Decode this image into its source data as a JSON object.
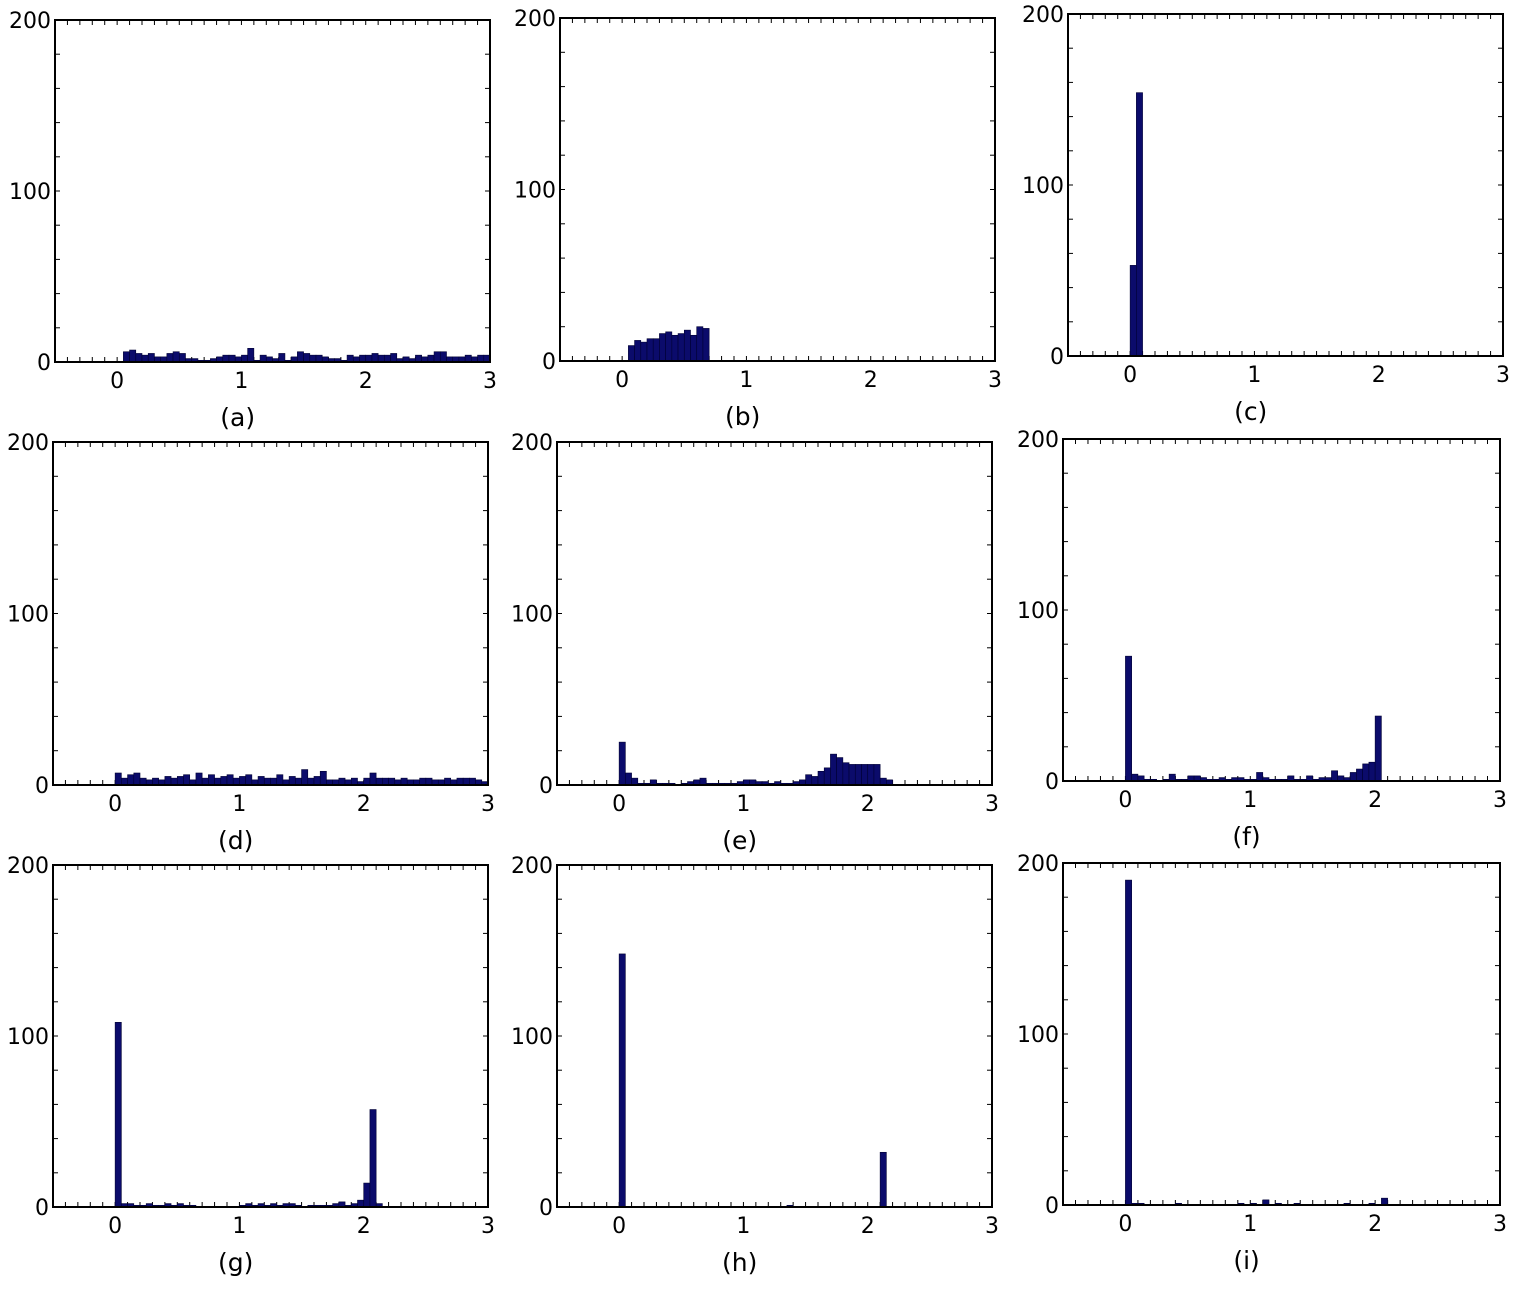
{
  "figure": {
    "bar_color": "#0b0b6b",
    "bar_edge_color": "#000033",
    "frame_color": "#000000"
  },
  "chart_data": [
    {
      "type": "bar",
      "caption": "(a)",
      "xlim": [
        -0.5,
        3
      ],
      "ylim": [
        0,
        200
      ],
      "xticks": [
        "0",
        "1",
        "2",
        "3"
      ],
      "yticks": [
        "0",
        "100",
        "200"
      ],
      "bin_width": 0.05,
      "x": [
        0.05,
        0.1,
        0.15,
        0.2,
        0.25,
        0.3,
        0.35,
        0.4,
        0.45,
        0.5,
        0.55,
        0.6,
        0.65,
        0.7,
        0.75,
        0.8,
        0.85,
        0.9,
        0.95,
        1.0,
        1.05,
        1.1,
        1.15,
        1.2,
        1.25,
        1.3,
        1.35,
        1.4,
        1.45,
        1.5,
        1.55,
        1.6,
        1.65,
        1.7,
        1.75,
        1.8,
        1.85,
        1.9,
        1.95,
        2.0,
        2.05,
        2.1,
        2.15,
        2.2,
        2.25,
        2.3,
        2.35,
        2.4,
        2.45,
        2.5,
        2.55,
        2.6,
        2.65,
        2.7,
        2.75,
        2.8,
        2.85,
        2.9,
        2.95
      ],
      "values": [
        6,
        7,
        5,
        4,
        5,
        3,
        3,
        5,
        6,
        5,
        2,
        2,
        1,
        1,
        2,
        3,
        4,
        4,
        3,
        4,
        8,
        1,
        4,
        3,
        2,
        5,
        1,
        3,
        6,
        5,
        4,
        4,
        3,
        2,
        2,
        1,
        4,
        3,
        4,
        4,
        5,
        4,
        4,
        5,
        2,
        3,
        2,
        4,
        3,
        4,
        6,
        6,
        3,
        3,
        3,
        4,
        3,
        4,
        4
      ]
    },
    {
      "type": "bar",
      "caption": "(b)",
      "xlim": [
        -0.5,
        3
      ],
      "ylim": [
        0,
        200
      ],
      "xticks": [
        "0",
        "1",
        "2",
        "3"
      ],
      "yticks": [
        "0",
        "100",
        "200"
      ],
      "bin_width": 0.05,
      "x": [
        0.05,
        0.1,
        0.15,
        0.2,
        0.25,
        0.3,
        0.35,
        0.4,
        0.45,
        0.5,
        0.55,
        0.6,
        0.65
      ],
      "values": [
        9,
        12,
        11,
        13,
        13,
        16,
        17,
        15,
        16,
        18,
        15,
        20,
        19
      ]
    },
    {
      "type": "bar",
      "caption": "(c)",
      "xlim": [
        -0.5,
        3
      ],
      "ylim": [
        0,
        200
      ],
      "xticks": [
        "0",
        "1",
        "2",
        "3"
      ],
      "yticks": [
        "0",
        "100",
        "200"
      ],
      "bin_width": 0.05,
      "x": [
        0.0,
        0.05
      ],
      "values": [
        53,
        154
      ]
    },
    {
      "type": "bar",
      "caption": "(d)",
      "xlim": [
        -0.5,
        3
      ],
      "ylim": [
        0,
        200
      ],
      "xticks": [
        "0",
        "1",
        "2",
        "3"
      ],
      "yticks": [
        "0",
        "100",
        "200"
      ],
      "bin_width": 0.05,
      "x": [
        0.0,
        0.05,
        0.1,
        0.15,
        0.2,
        0.25,
        0.3,
        0.35,
        0.4,
        0.45,
        0.5,
        0.55,
        0.6,
        0.65,
        0.7,
        0.75,
        0.8,
        0.85,
        0.9,
        0.95,
        1.0,
        1.05,
        1.1,
        1.15,
        1.2,
        1.25,
        1.3,
        1.35,
        1.4,
        1.45,
        1.5,
        1.55,
        1.6,
        1.65,
        1.7,
        1.75,
        1.8,
        1.85,
        1.9,
        1.95,
        2.0,
        2.05,
        2.1,
        2.15,
        2.2,
        2.25,
        2.3,
        2.35,
        2.4,
        2.45,
        2.5,
        2.55,
        2.6,
        2.65,
        2.7,
        2.75,
        2.8,
        2.85,
        2.9,
        2.95
      ],
      "values": [
        7,
        4,
        6,
        7,
        4,
        3,
        4,
        3,
        5,
        4,
        5,
        6,
        3,
        7,
        4,
        6,
        4,
        5,
        6,
        4,
        5,
        6,
        3,
        5,
        4,
        4,
        6,
        3,
        5,
        4,
        9,
        4,
        5,
        8,
        3,
        3,
        4,
        3,
        4,
        2,
        4,
        7,
        4,
        4,
        4,
        3,
        4,
        3,
        3,
        4,
        4,
        3,
        3,
        4,
        3,
        4,
        4,
        4,
        3,
        2
      ]
    },
    {
      "type": "bar",
      "caption": "(e)",
      "xlim": [
        -0.5,
        3
      ],
      "ylim": [
        0,
        200
      ],
      "xticks": [
        "0",
        "1",
        "2",
        "3"
      ],
      "yticks": [
        "0",
        "100",
        "200"
      ],
      "bin_width": 0.05,
      "x": [
        0.0,
        0.05,
        0.1,
        0.15,
        0.2,
        0.25,
        0.3,
        0.35,
        0.4,
        0.45,
        0.5,
        0.55,
        0.6,
        0.65,
        0.7,
        0.75,
        0.8,
        0.85,
        0.9,
        0.95,
        1.0,
        1.05,
        1.1,
        1.15,
        1.2,
        1.25,
        1.3,
        1.35,
        1.4,
        1.45,
        1.5,
        1.55,
        1.6,
        1.65,
        1.7,
        1.75,
        1.8,
        1.85,
        1.9,
        1.95,
        2.0,
        2.05,
        2.1,
        2.15
      ],
      "values": [
        25,
        7,
        4,
        1,
        1,
        3,
        1,
        1,
        1,
        0,
        1,
        2,
        3,
        4,
        1,
        1,
        1,
        1,
        1,
        2,
        3,
        3,
        2,
        2,
        1,
        2,
        1,
        1,
        2,
        3,
        6,
        5,
        8,
        10,
        18,
        16,
        13,
        12,
        12,
        12,
        12,
        12,
        4,
        3
      ]
    },
    {
      "type": "bar",
      "caption": "(f)",
      "xlim": [
        -0.5,
        3
      ],
      "ylim": [
        0,
        200
      ],
      "xticks": [
        "0",
        "1",
        "2",
        "3"
      ],
      "yticks": [
        "0",
        "100",
        "200"
      ],
      "bin_width": 0.05,
      "x": [
        0.0,
        0.05,
        0.1,
        0.15,
        0.2,
        0.25,
        0.3,
        0.35,
        0.4,
        0.45,
        0.5,
        0.55,
        0.6,
        0.65,
        0.7,
        0.75,
        0.8,
        0.85,
        0.9,
        0.95,
        1.0,
        1.05,
        1.1,
        1.15,
        1.2,
        1.25,
        1.3,
        1.35,
        1.4,
        1.45,
        1.5,
        1.55,
        1.6,
        1.65,
        1.7,
        1.75,
        1.8,
        1.85,
        1.9,
        1.95,
        2.0
      ],
      "values": [
        73,
        4,
        3,
        1,
        1,
        0,
        1,
        4,
        1,
        1,
        3,
        3,
        2,
        1,
        1,
        2,
        1,
        2,
        2,
        1,
        1,
        5,
        2,
        1,
        1,
        1,
        3,
        1,
        1,
        3,
        1,
        2,
        2,
        6,
        3,
        2,
        5,
        7,
        10,
        11,
        38
      ]
    },
    {
      "type": "bar",
      "caption": "(g)",
      "xlim": [
        -0.5,
        3
      ],
      "ylim": [
        0,
        200
      ],
      "xticks": [
        "0",
        "1",
        "2",
        "3"
      ],
      "yticks": [
        "0",
        "100",
        "200"
      ],
      "bin_width": 0.05,
      "x": [
        0.0,
        0.05,
        0.1,
        0.15,
        0.2,
        0.25,
        0.3,
        0.35,
        0.4,
        0.45,
        0.5,
        0.55,
        0.6,
        0.65,
        0.7,
        0.75,
        0.8,
        0.85,
        0.9,
        0.95,
        1.0,
        1.05,
        1.1,
        1.15,
        1.2,
        1.25,
        1.3,
        1.35,
        1.4,
        1.45,
        1.5,
        1.55,
        1.6,
        1.65,
        1.7,
        1.75,
        1.8,
        1.85,
        1.9,
        1.95,
        2.0,
        2.05,
        2.1
      ],
      "values": [
        108,
        2,
        2,
        1,
        1,
        2,
        1,
        1,
        2,
        1,
        2,
        1,
        1,
        0,
        0,
        0,
        0,
        0,
        0,
        0,
        1,
        2,
        1,
        2,
        1,
        2,
        1,
        2,
        2,
        1,
        0,
        1,
        1,
        1,
        1,
        2,
        3,
        1,
        2,
        4,
        14,
        57,
        2
      ]
    },
    {
      "type": "bar",
      "caption": "(h)",
      "xlim": [
        -0.5,
        3
      ],
      "ylim": [
        0,
        200
      ],
      "xticks": [
        "0",
        "1",
        "2",
        "3"
      ],
      "yticks": [
        "0",
        "100",
        "200"
      ],
      "bin_width": 0.05,
      "x": [
        0.0,
        1.35,
        2.1
      ],
      "values": [
        148,
        1,
        32
      ]
    },
    {
      "type": "bar",
      "caption": "(i)",
      "xlim": [
        -0.5,
        3
      ],
      "ylim": [
        0,
        200
      ],
      "xticks": [
        "0",
        "1",
        "2",
        "3"
      ],
      "yticks": [
        "0",
        "100",
        "200"
      ],
      "bin_width": 0.05,
      "x": [
        0.0,
        0.05,
        0.1,
        0.4,
        0.9,
        1.0,
        1.1,
        1.2,
        1.35,
        1.75,
        1.95,
        2.05
      ],
      "values": [
        190,
        1,
        1,
        1,
        1,
        1,
        3,
        1,
        1,
        1,
        1,
        4
      ]
    }
  ]
}
